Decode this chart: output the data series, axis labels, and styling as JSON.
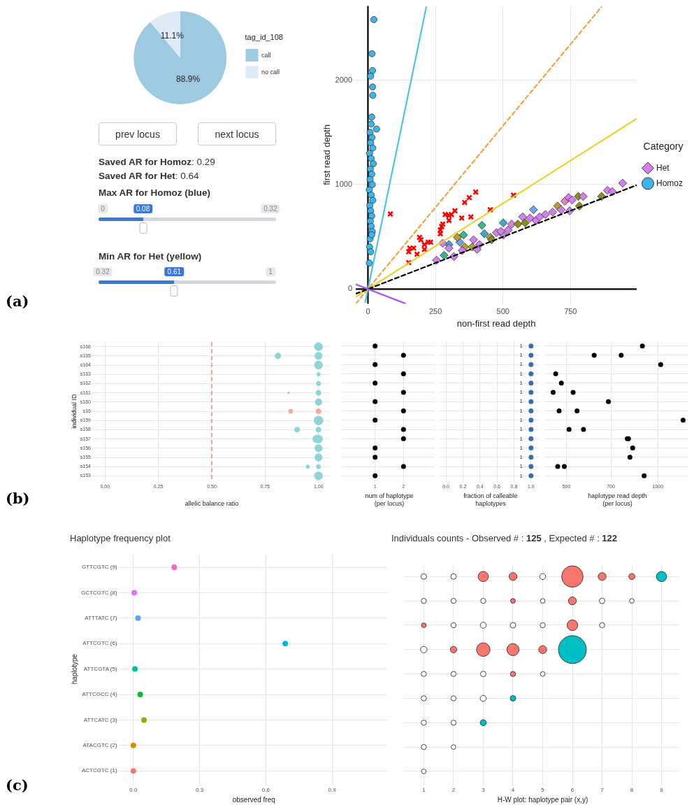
{
  "chart_data": [
    {
      "type": "pie",
      "categories": [
        "call",
        "no call"
      ],
      "values": [
        88.9,
        11.1
      ],
      "colors": [
        "#9ecae1",
        "#deebf7"
      ],
      "value_labels": [
        "88.9%",
        "11.1%"
      ],
      "legend": "right",
      "legend_title": "tag_id_108",
      "annotations": [
        "(a)"
      ]
    },
    {
      "type": "other",
      "annotations": [
        "prev locus",
        "next locus",
        "Saved AR for Homoz: 0.29",
        "Saved AR for Het: 0.64",
        "Max AR for Homoz (blue)",
        "0",
        "0.08",
        "0.32",
        "Min AR for Het (yellow)",
        "0.32",
        "0.61",
        "1"
      ]
    },
    {
      "type": "scatter",
      "xlabel": "non-first read depth",
      "ylabel": "first read depth",
      "xlim": [
        -45,
        995
      ],
      "ylim": [
        -140,
        2710
      ],
      "xticks": [
        0,
        250,
        500,
        750
      ],
      "yticks": [
        0,
        1000,
        2000
      ],
      "grid": true,
      "legend": "right",
      "legend_title": "Category",
      "series": [
        {
          "type": "line",
          "color": "#000000",
          "x": [
            0,
            0
          ],
          "values": [
            -140,
            2710
          ]
        },
        {
          "type": "line",
          "color": "#000000",
          "x": [
            -45,
            995
          ],
          "values": [
            0,
            0
          ]
        },
        {
          "name": "Het",
          "type": "scatter",
          "marker": "diamond",
          "color": "#d27ff0",
          "x": [
            254,
            282,
            300,
            318,
            340,
            354,
            358,
            386,
            391,
            422,
            413,
            431,
            453,
            458,
            476,
            501,
            501,
            519,
            532,
            555,
            573,
            582,
            600,
            613,
            622,
            636,
            657,
            684,
            702,
            715,
            729,
            743,
            747,
            756,
            779,
            783,
            797,
            865,
            887,
            905,
            943,
            349,
            404,
            300,
            277,
            331,
            492
          ],
          "values": [
            276,
            323,
            426,
            311,
            449,
            518,
            403,
            403,
            472,
            611,
            426,
            530,
            495,
            472,
            541,
            518,
            634,
            565,
            622,
            622,
            691,
            634,
            680,
            760,
            657,
            691,
            714,
            737,
            795,
            760,
            841,
            876,
            749,
            853,
            887,
            795,
            887,
            887,
            945,
            933,
            1014,
            369,
            380,
            392,
            438,
            495,
            553
          ],
          "colors": [
            "#d27ff0",
            "#3bb58f",
            "#41a7c6",
            "#d27ff0",
            "#6fa3f0",
            "#3bb58f",
            "#b89c3a",
            "#b89c3a",
            "#d27ff0",
            "#3bb58f",
            "#d27ff0",
            "#41a7c6",
            "#b89c3a",
            "#8c8c1f",
            "#d27ff0",
            "#d27ff0",
            "#41a7c6",
            "#d27ff0",
            "#d27ff0",
            "#8c8c1f",
            "#d27ff0",
            "#8c8c1f",
            "#d27ff0",
            "#6fa3f0",
            "#d27ff0",
            "#d27ff0",
            "#d27ff0",
            "#d27ff0",
            "#b89c3a",
            "#d27ff0",
            "#ee7fc0",
            "#d27ff0",
            "#d27ff0",
            "#d27ff0",
            "#8c8c1f",
            "#8c8c1f",
            "#d27ff0",
            "#8c8c1f",
            "#d27ff0",
            "#d27ff0",
            "#d27ff0",
            "#d27ff0",
            "#d27ff0",
            "#d27ff0",
            "#d27ff0",
            "#b89c3a",
            "#d27ff0"
          ]
        },
        {
          "name": "Homoz",
          "type": "scatter",
          "marker": "circle",
          "color": "#3db5ea",
          "x": [
            22,
            15,
            17,
            10,
            17,
            18,
            14,
            32,
            12,
            8,
            15,
            10,
            18,
            6,
            12,
            20,
            9,
            14,
            8,
            16,
            5,
            12,
            18,
            7,
            10,
            14,
            9,
            12,
            16,
            6,
            10,
            5,
            8,
            14
          ],
          "values": [
            2580,
            2253,
            2092,
            2039,
            1935,
            1855,
            1647,
            1532,
            1580,
            1500,
            1450,
            1400,
            1350,
            1300,
            1250,
            1200,
            1150,
            1100,
            1050,
            1000,
            950,
            900,
            850,
            800,
            750,
            700,
            650,
            600,
            550,
            403,
            357,
            249,
            480,
            520
          ]
        },
        {
          "type": "scatter",
          "marker": "cross",
          "color": "#ff0000",
          "x": [
            83,
            151,
            151,
            155,
            169,
            182,
            191,
            196,
            209,
            223,
            232,
            268,
            268,
            273,
            277,
            286,
            300,
            309,
            300,
            322,
            347,
            358,
            375,
            381,
            399,
            453,
            539,
            209
          ],
          "values": [
            719,
            253,
            357,
            392,
            392,
            334,
            495,
            472,
            380,
            449,
            449,
            530,
            565,
            599,
            622,
            714,
            703,
            714,
            657,
            749,
            680,
            829,
            876,
            691,
            929,
            760,
            899,
            426
          ]
        },
        {
          "type": "line",
          "color": "#4ec3e8",
          "x": [
            -10,
            216
          ],
          "values": [
            -125,
            2700
          ]
        },
        {
          "type": "line",
          "color": "#f5a142",
          "line_style": "dashed",
          "x": [
            -44,
            864
          ],
          "values": [
            -137,
            2700
          ]
        },
        {
          "type": "line",
          "color": "#ecd130",
          "x": [
            -45,
            995
          ],
          "values": [
            -74,
            1632
          ]
        },
        {
          "type": "line",
          "color": "#000000",
          "line_style": "dashed",
          "x": [
            -45,
            995
          ],
          "values": [
            -45,
            995
          ]
        },
        {
          "type": "line",
          "color": "#a855f7",
          "x": [
            -45,
            138
          ],
          "values": [
            45,
            -138
          ]
        }
      ]
    },
    {
      "type": "bubble",
      "orientation": "horizontal",
      "xlabel": "allelic balance ratio",
      "ylabel": "individual ID",
      "annotations": [
        "(b)"
      ],
      "grid": true,
      "xlim": [
        -0.05,
        1.05
      ],
      "xticks": [
        {
          "value": 0,
          "label": "0.00"
        },
        {
          "value": 0.25,
          "label": "0.25"
        },
        {
          "value": 0.5,
          "label": "0.50"
        },
        {
          "value": 0.75,
          "label": "0.75"
        },
        {
          "value": 1,
          "label": "1.00"
        }
      ],
      "categories": [
        "s166",
        "s165",
        "s164",
        "s163",
        "s162",
        "s161",
        "s160",
        "s16",
        "s159",
        "s158",
        "s157",
        "s156",
        "s155",
        "s154",
        "s153"
      ],
      "ref_lines": [
        {
          "axis": "x",
          "value": 0.5,
          "color": "#e8474b",
          "line_style": "dashed"
        }
      ],
      "series": [
        {
          "color": "#8fd5d6",
          "values": [
            1,
            1,
            1,
            1,
            1,
            1,
            1,
            1,
            1,
            1,
            1,
            1,
            1,
            1,
            1
          ],
          "sizes": [
            0.84,
            0.69,
            0.84,
            0.17,
            0.25,
            0.34,
            0.56,
            0.34,
            1,
            0.34,
            0.84,
            0.69,
            0.69,
            0.25,
            0.84
          ],
          "colors": [
            "#8fd5d6",
            "#8fd5d6",
            "#8fd5d6",
            "#8fd5d6",
            "#8fd5d6",
            "#8fd5d6",
            "#8fd5d6",
            "#f6a9a3",
            "#8fd5d6",
            "#8fd5d6",
            "#8fd5d6",
            "#8fd5d6",
            "#8fd5d6",
            "#8fd5d6",
            "#8fd5d6"
          ]
        },
        {
          "color": "#8fd5d6",
          "values": [
            null,
            0.81,
            null,
            null,
            null,
            0.86,
            null,
            0.87,
            null,
            0.9,
            0.99,
            null,
            null,
            0.95,
            null
          ],
          "sizes": [
            null,
            0.44,
            null,
            null,
            null,
            0.06,
            null,
            0.25,
            null,
            0.34,
            0.69,
            null,
            null,
            0.17,
            null
          ],
          "colors": [
            "#8fd5d6",
            "#8fd5d6",
            "#8fd5d6",
            "#8fd5d6",
            "#8fd5d6",
            "#8fd5d6",
            "#8fd5d6",
            "#f6a9a3",
            "#8fd5d6",
            "#8fd5d6",
            "#8fd5d6",
            "#8fd5d6",
            "#8fd5d6",
            "#8fd5d6",
            "#8fd5d6"
          ]
        }
      ]
    },
    {
      "type": "scatter",
      "orientation": "horizontal",
      "marker": "circle",
      "xlabel": "num of haplotype\n(per locus)",
      "grid": true,
      "tick_labels": "x",
      "xlim": [
        -0.1,
        3.1
      ],
      "xticks": [
        1,
        2
      ],
      "categories": [
        null,
        null,
        null,
        null,
        null,
        null,
        null,
        null,
        null,
        null,
        null,
        null,
        null,
        null,
        null
      ],
      "values": [
        1,
        2,
        1,
        2,
        1,
        2,
        1,
        2,
        1,
        2,
        2,
        1,
        1,
        2,
        1
      ],
      "color": "#000000"
    },
    {
      "type": "scatter",
      "orientation": "horizontal",
      "marker": "circle",
      "xlabel": "fraction of calleable\nhaplotypes",
      "grid": true,
      "tick_labels": "x",
      "data_labels": true,
      "xlim": [
        -0.05,
        1.1
      ],
      "xticks": [
        {
          "value": 0,
          "label": "0.0"
        },
        0.2,
        0.4,
        0.6,
        0.8,
        {
          "value": 1,
          "label": "1.0"
        }
      ],
      "categories": [
        null,
        null,
        null,
        null,
        null,
        null,
        null,
        null,
        null,
        null,
        null,
        null,
        null,
        null,
        null
      ],
      "values": [
        1,
        1,
        1,
        1,
        1,
        1,
        1,
        1,
        1,
        1,
        1,
        1,
        1,
        1,
        1
      ],
      "color": "#3a6ea5"
    },
    {
      "type": "scatter",
      "orientation": "horizontal",
      "marker": "circle",
      "xlabel": "haplotype read depth\n(per locus)",
      "grid": true,
      "tick_labels": "x",
      "log": "x",
      "xlim": [
        430,
        1260
      ],
      "xticks": [
        500,
        700,
        1000
      ],
      "categories": [
        null,
        null,
        null,
        null,
        null,
        null,
        null,
        null,
        null,
        null,
        null,
        null,
        null,
        null,
        null
      ],
      "series": [
        {
          "color": "#000000",
          "values": [
            889,
            617,
            1021,
            461,
            481,
            452,
            687,
            473,
            1210,
            510,
            793,
            826,
            809,
            468,
            901
          ]
        },
        {
          "color": "#000000",
          "values": [
            null,
            757,
            null,
            null,
            null,
            526,
            null,
            542,
            null,
            569,
            800,
            null,
            null,
            492,
            null
          ]
        }
      ]
    },
    {
      "type": "scatter",
      "orientation": "horizontal",
      "marker": "circle",
      "title": "Haplotype frequency plot",
      "xlabel": "observed freq",
      "ylabel": "haplotype",
      "annotations": [
        "(c)"
      ],
      "grid": true,
      "xlim": [
        -0.058,
        1.15
      ],
      "xticks": [
        {
          "value": 0,
          "label": "0.0"
        },
        0.3,
        0.6,
        0.9
      ],
      "categories": [
        "GTTCGTC (9)",
        "GCTCGTC (8)",
        "ATTTATC (7)",
        "ATTCGTC (6)",
        "ATTCGTA (5)",
        "ATTCGCC (4)",
        "ATTCATC (3)",
        "ATACGTC (2)",
        "ACTCGTC (1)"
      ],
      "values": [
        0.185,
        0.004,
        0.021,
        0.688,
        0.007,
        0.031,
        0.048,
        0,
        0
      ],
      "color": "#ff61c3",
      "colors": [
        "#ff61c3",
        "#db72fb",
        "#619cff",
        "#00b9e3",
        "#00c19f",
        "#00ba38",
        "#93aa00",
        "#d39200",
        "#f8766d"
      ]
    },
    {
      "type": "bubble",
      "orientation": "horizontal",
      "marker": "circle",
      "title": "Individuals counts - Observed # : 125 , Expected # : 122",
      "xlabel": "H-W plot: haplotype pair (x,y)",
      "grid": true,
      "xlim": [
        0.4,
        9.6
      ],
      "xticks": [
        1,
        2,
        3,
        4,
        5,
        6,
        7,
        8,
        9
      ],
      "categories": [
        null,
        null,
        null,
        null,
        null,
        null,
        null,
        null,
        null
      ],
      "series": [
        {
          "color": "#ffffff",
          "values": [
            1,
            1,
            1,
            1,
            1,
            1,
            1,
            1,
            1
          ],
          "sizes": [
            0.04,
            0.034,
            0.028,
            0.054,
            0.034,
            0.034,
            0.034,
            0.034,
            0.028
          ],
          "colors": [
            "#ffffff",
            "#ffffff",
            "#f8766d",
            "#ffffff",
            "#ffffff",
            "#ffffff",
            "#ffffff",
            "#ffffff",
            "#ffffff"
          ]
        },
        {
          "color": "#ffffff",
          "values": [
            2,
            2,
            2,
            2,
            2,
            2,
            2,
            2,
            null
          ],
          "sizes": [
            0.04,
            0.034,
            0.034,
            0.054,
            0.034,
            0.034,
            0.034,
            0.028,
            null
          ],
          "colors": [
            "#ffffff",
            "#ffffff",
            "#ffffff",
            "#f8766d",
            "#ffffff",
            "#ffffff",
            "#ffffff",
            "#ffffff",
            "#ffffff"
          ]
        },
        {
          "color": "#f8766d",
          "values": [
            3,
            3,
            3,
            3,
            3,
            3,
            3,
            null,
            null
          ],
          "sizes": [
            0.134,
            0.034,
            0.047,
            0.234,
            0.04,
            0.047,
            0.047,
            null,
            null
          ],
          "colors": [
            "#f8766d",
            "#ffffff",
            "#ffffff",
            "#f8766d",
            "#ffffff",
            "#ffffff",
            "#00bfc4",
            "#ffffff",
            "#ffffff"
          ]
        },
        {
          "color": "#f8766d",
          "values": [
            4,
            4,
            4,
            4,
            4,
            4,
            null,
            null,
            null
          ],
          "sizes": [
            0.08,
            0.028,
            0.04,
            0.188,
            0.034,
            0.04,
            null,
            null,
            null
          ],
          "colors": [
            "#f8766d",
            "#f8766d",
            "#ffffff",
            "#f8766d",
            "#f8766d",
            "#00bfc4",
            "#ffffff",
            "#ffffff",
            "#ffffff"
          ]
        },
        {
          "color": "#ffffff",
          "values": [
            5,
            5,
            5,
            5,
            5,
            null,
            null,
            null,
            null
          ],
          "sizes": [
            0.047,
            0.028,
            0.034,
            0.08,
            0.028,
            null,
            null,
            null,
            null
          ],
          "colors": [
            "#ffffff",
            "#ffffff",
            "#ffffff",
            "#f8766d",
            "#ffffff",
            "#ffffff",
            "#ffffff",
            "#ffffff",
            "#ffffff"
          ]
        },
        {
          "color": "#f8766d",
          "values": [
            6,
            6,
            6,
            6,
            null,
            null,
            null,
            null,
            null
          ],
          "sizes": [
            0.588,
            0.08,
            0.147,
            1,
            null,
            null,
            null,
            null,
            null
          ],
          "colors": [
            "#f8766d",
            "#f8766d",
            "#f8766d",
            "#00bfc4",
            "#ffffff",
            "#ffffff",
            "#ffffff",
            "#ffffff",
            "#ffffff"
          ]
        },
        {
          "color": "#f8766d",
          "values": [
            7,
            7,
            7,
            null,
            null,
            null,
            null,
            null,
            null
          ],
          "sizes": [
            0.08,
            0.04,
            0.034,
            null,
            null,
            null,
            null,
            null,
            null
          ],
          "colors": [
            "#f8766d",
            "#ffffff",
            "#ffffff",
            "#ffffff",
            "#ffffff",
            "#ffffff",
            "#ffffff",
            "#ffffff",
            "#ffffff"
          ]
        },
        {
          "color": "#f8766d",
          "values": [
            8,
            8,
            null,
            null,
            null,
            null,
            null,
            null,
            null
          ],
          "sizes": [
            0.047,
            0.028,
            null,
            null,
            null,
            null,
            null,
            null,
            null
          ],
          "colors": [
            "#f8766d",
            "#ffffff",
            "#ffffff",
            "#ffffff",
            "#ffffff",
            "#ffffff",
            "#ffffff",
            "#ffffff",
            "#ffffff"
          ]
        },
        {
          "color": "#00bfc4",
          "values": [
            9,
            null,
            null,
            null,
            null,
            null,
            null,
            null,
            null
          ],
          "sizes": [
            0.134,
            null,
            null,
            null,
            null,
            null,
            null,
            null,
            null
          ],
          "colors": [
            "#00bfc4",
            "#ffffff",
            "#ffffff",
            "#ffffff",
            "#ffffff",
            "#ffffff",
            "#ffffff",
            "#ffffff",
            "#ffffff"
          ]
        }
      ]
    }
  ]
}
